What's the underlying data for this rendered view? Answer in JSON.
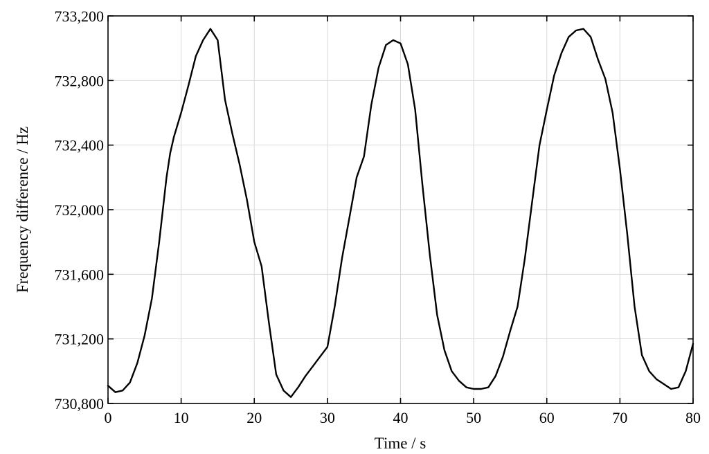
{
  "chart_data": {
    "type": "line",
    "xlabel": "Time / s",
    "ylabel": "Frequency difference / Hz",
    "xlim": [
      0,
      80
    ],
    "ylim": [
      730800,
      733200
    ],
    "xticks": [
      0,
      10,
      20,
      30,
      40,
      50,
      60,
      70,
      80
    ],
    "yticks": [
      730800,
      731200,
      731600,
      732000,
      732400,
      732800,
      733200
    ],
    "xtick_labels": [
      "0",
      "10",
      "20",
      "30",
      "40",
      "50",
      "60",
      "70",
      "80"
    ],
    "ytick_labels": [
      "730,800",
      "731,200",
      "731,600",
      "732,000",
      "732,400",
      "732,800",
      "733,200"
    ],
    "grid": true,
    "line_color": "#000000",
    "series": [
      {
        "x": [
          0,
          1,
          2,
          3,
          4,
          5,
          6,
          7,
          7.5,
          8,
          8.5,
          9,
          10,
          11,
          12,
          13,
          14,
          15,
          16,
          17,
          18,
          19,
          20,
          21,
          22,
          23,
          24,
          25,
          26,
          27,
          28,
          29,
          30,
          31,
          32,
          33,
          34,
          35,
          36,
          37,
          38,
          39,
          40,
          41,
          42,
          43,
          44,
          45,
          46,
          47,
          48,
          49,
          50,
          51,
          52,
          53,
          54,
          55,
          56,
          57,
          58,
          59,
          60,
          61,
          62,
          63,
          64,
          65,
          66,
          67,
          68,
          69,
          70,
          71,
          72,
          73,
          74,
          75,
          76,
          77,
          78,
          79,
          80
        ],
        "y": [
          730910,
          730870,
          730880,
          730930,
          731050,
          731220,
          731450,
          731800,
          732000,
          732200,
          732350,
          732450,
          732600,
          732770,
          732950,
          733050,
          733120,
          733050,
          732680,
          732470,
          732280,
          732060,
          731800,
          731650,
          731300,
          730980,
          730880,
          730840,
          730900,
          730970,
          731030,
          731090,
          731150,
          731400,
          731700,
          731950,
          732200,
          732330,
          732650,
          732880,
          733020,
          733050,
          733030,
          732900,
          732620,
          732150,
          731720,
          731350,
          731130,
          731000,
          730940,
          730900,
          730890,
          730890,
          730900,
          730970,
          731090,
          731250,
          731400,
          731700,
          732050,
          732400,
          732620,
          732830,
          732970,
          733070,
          733110,
          733120,
          733070,
          732930,
          732810,
          732600,
          732250,
          731850,
          731400,
          731100,
          731000,
          730950,
          730920,
          730890,
          730900,
          731000,
          731170
        ]
      }
    ]
  }
}
